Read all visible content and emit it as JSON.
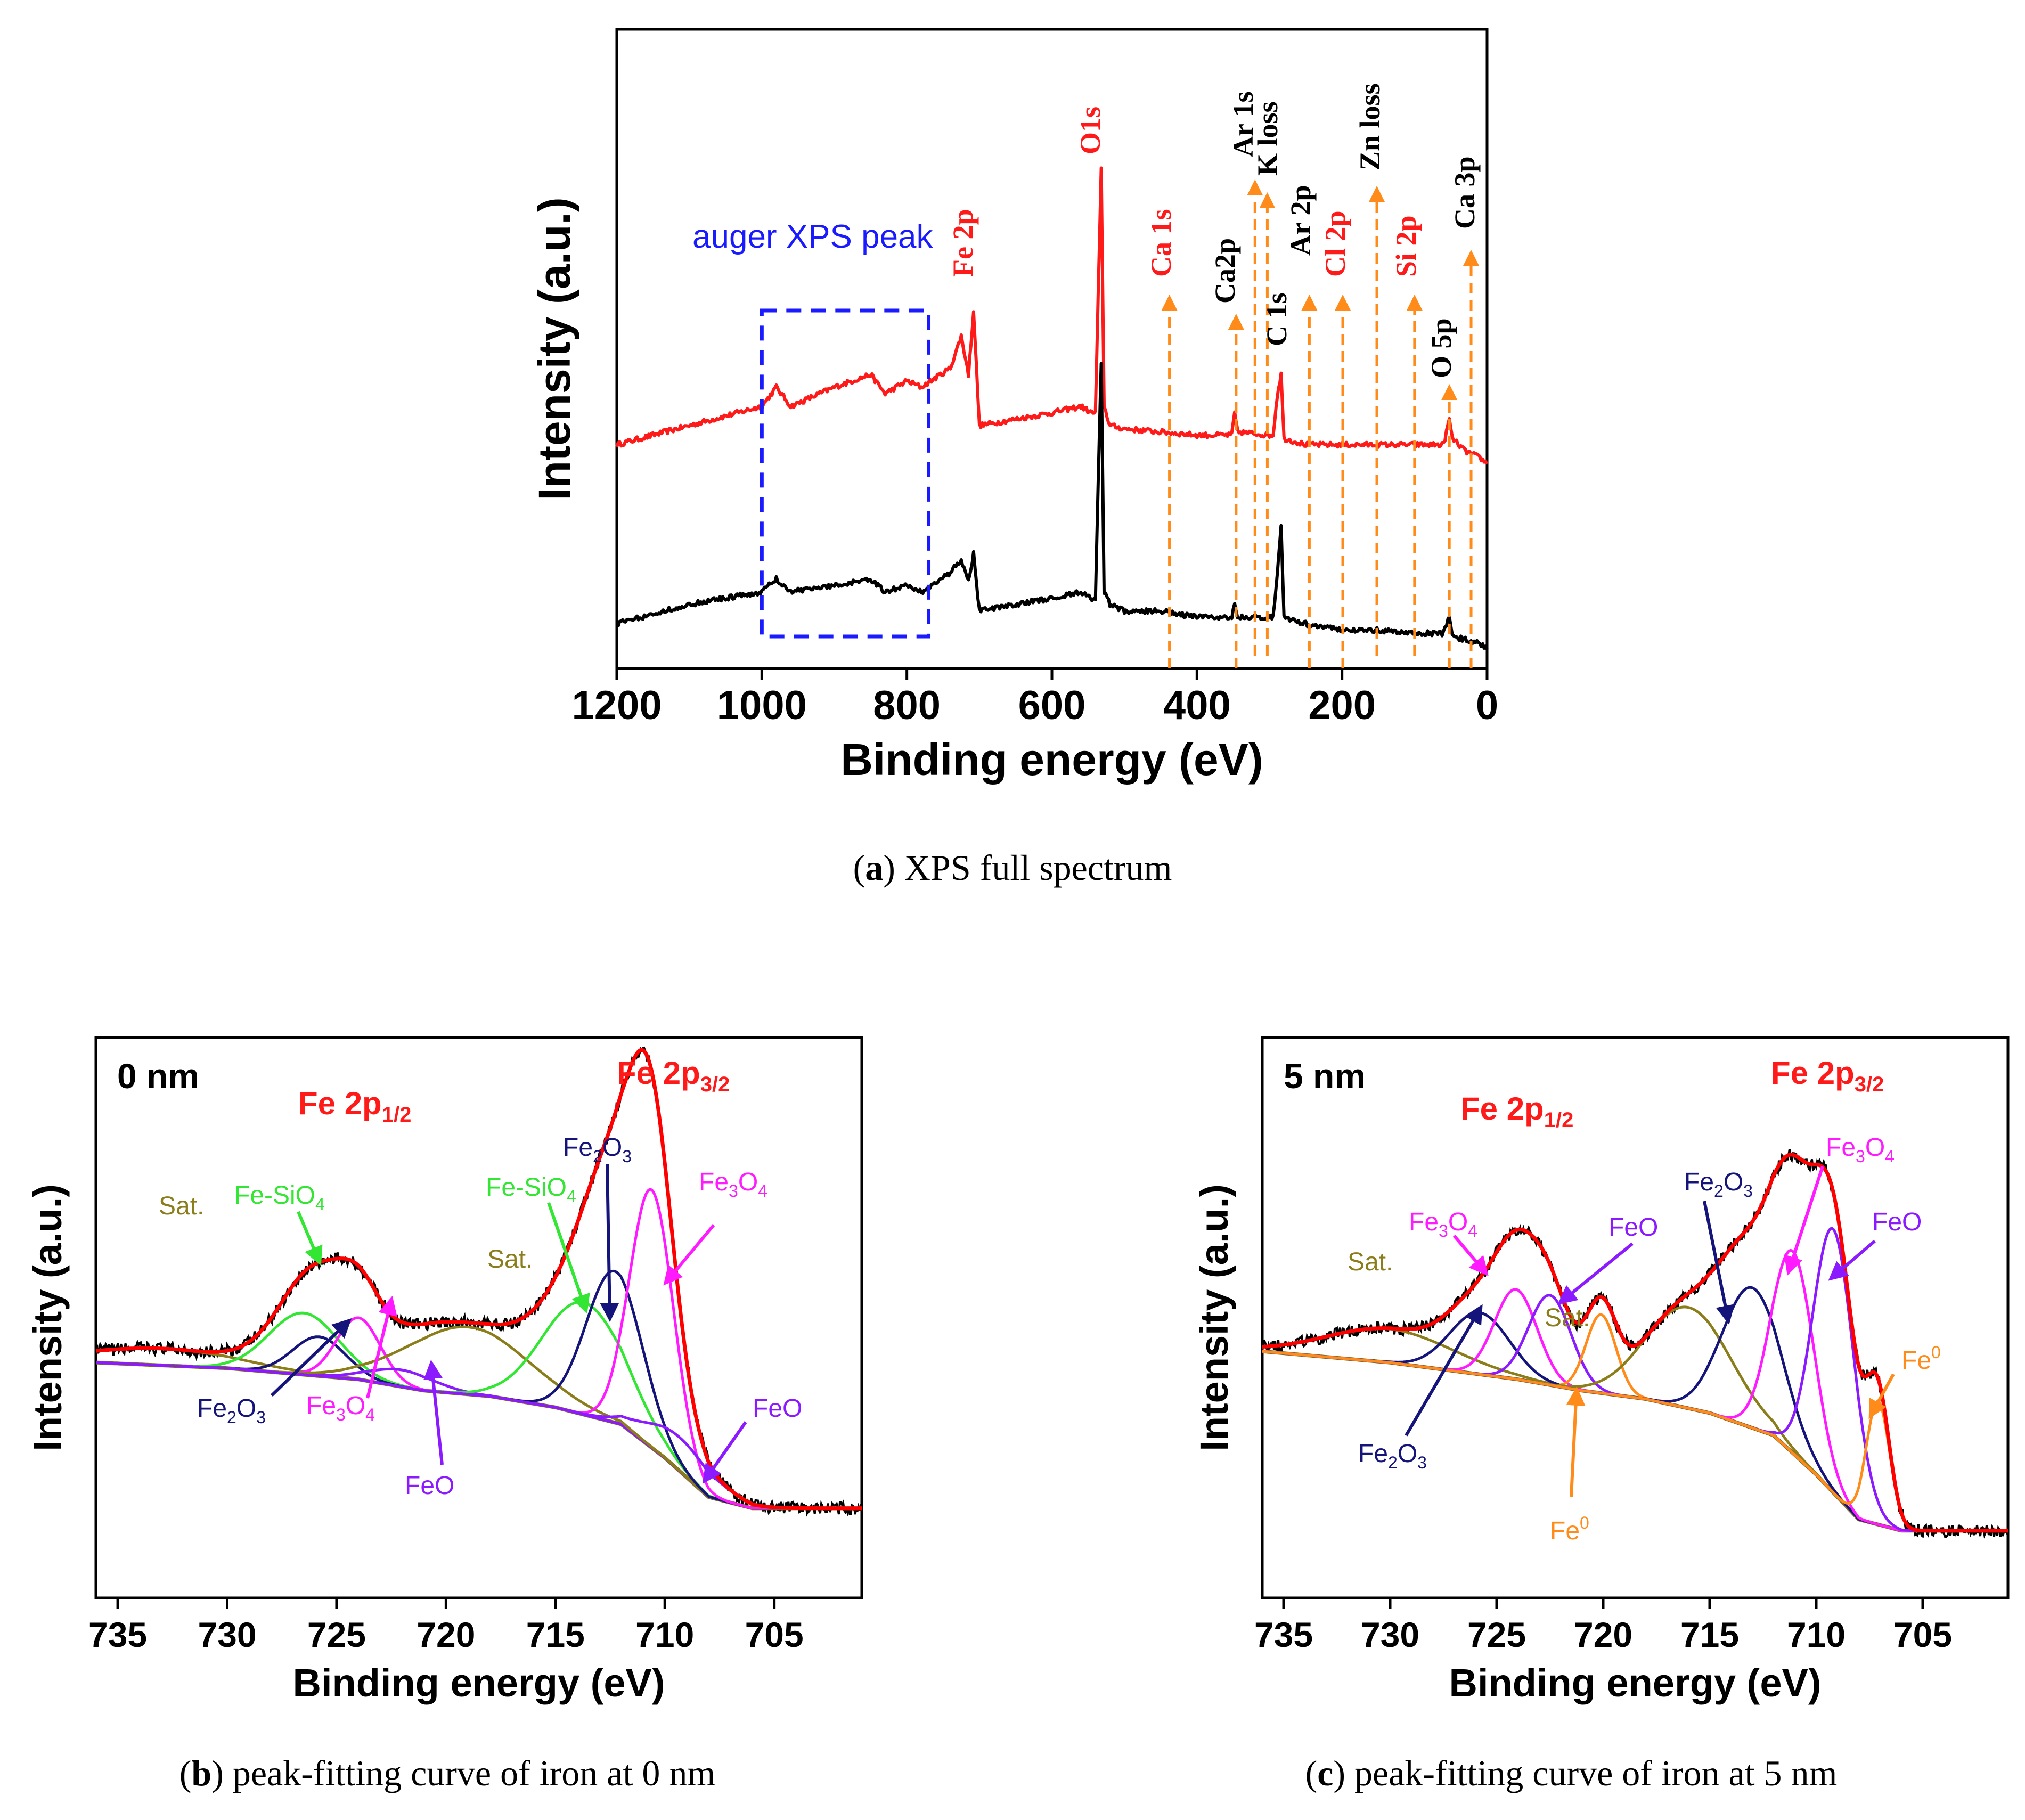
{
  "figure": {
    "captions": {
      "a": {
        "letter": "a",
        "text": ") XPS full spectrum"
      },
      "b": {
        "letter": "b",
        "text": ") peak-fitting curve of iron at 0 nm"
      },
      "c": {
        "letter": "c",
        "text": ") peak-fitting curve of iron at 5 nm"
      }
    }
  },
  "colors": {
    "red": "#ff1a1a",
    "black": "#000000",
    "orange": "#ff8c1a",
    "blue_box": "#1a1aff",
    "olive": "#8b7d1a",
    "green": "#33e633",
    "navy": "#14147a",
    "magenta": "#ff1aff",
    "violet": "#8c1aff",
    "fe0_orange": "#ff8c1a",
    "envelope": "#ff0000"
  },
  "chart_data": [
    {
      "id": "a",
      "type": "line",
      "title": "",
      "xlabel": "Binding energy (eV)",
      "ylabel": "Intensity (a.u.)",
      "xlim": [
        1200,
        0
      ],
      "ylim": [
        0,
        100
      ],
      "x_ticks": [
        1200,
        1000,
        800,
        600,
        400,
        200,
        0
      ],
      "x_tick_labels": [
        "1200",
        "1000",
        "800",
        "600",
        "400",
        "200",
        "0"
      ],
      "series": [
        {
          "name": "red spectrum",
          "color": "red",
          "points": [
            [
              1200,
              35
            ],
            [
              1100,
              38
            ],
            [
              1000,
              41
            ],
            [
              980,
              44
            ],
            [
              960,
              41
            ],
            [
              900,
              44
            ],
            [
              850,
              46
            ],
            [
              830,
              43
            ],
            [
              800,
              45
            ],
            [
              780,
              44
            ],
            [
              740,
              47
            ],
            [
              725,
              52
            ],
            [
              715,
              46
            ],
            [
              708,
              56
            ],
            [
              700,
              38
            ],
            [
              650,
              39
            ],
            [
              600,
              40
            ],
            [
              560,
              41
            ],
            [
              545,
              40
            ],
            [
              540,
              40
            ],
            [
              532,
              78
            ],
            [
              528,
              41
            ],
            [
              520,
              38
            ],
            [
              500,
              37.5
            ],
            [
              450,
              37
            ],
            [
              400,
              36.5
            ],
            [
              352,
              36.5
            ],
            [
              348,
              40
            ],
            [
              344,
              37
            ],
            [
              300,
              36.5
            ],
            [
              295,
              36.5
            ],
            [
              289,
              43
            ],
            [
              284,
              46
            ],
            [
              280,
              36
            ],
            [
              250,
              35
            ],
            [
              200,
              35
            ],
            [
              150,
              35
            ],
            [
              100,
              35
            ],
            [
              60,
              35
            ],
            [
              52,
              39
            ],
            [
              48,
              36
            ],
            [
              30,
              34
            ],
            [
              10,
              33
            ],
            [
              0,
              32
            ]
          ]
        },
        {
          "name": "black spectrum",
          "color": "black",
          "points": [
            [
              1200,
              7
            ],
            [
              1100,
              10
            ],
            [
              1000,
              12
            ],
            [
              980,
              14
            ],
            [
              960,
              12
            ],
            [
              900,
              13
            ],
            [
              850,
              14
            ],
            [
              830,
              12
            ],
            [
              800,
              13
            ],
            [
              780,
              12
            ],
            [
              740,
              15
            ],
            [
              725,
              17
            ],
            [
              715,
              14
            ],
            [
              708,
              18
            ],
            [
              700,
              9
            ],
            [
              650,
              10
            ],
            [
              600,
              11
            ],
            [
              560,
              12
            ],
            [
              545,
              11
            ],
            [
              540,
              11
            ],
            [
              532,
              48
            ],
            [
              528,
              12
            ],
            [
              520,
              10
            ],
            [
              500,
              9
            ],
            [
              450,
              9
            ],
            [
              400,
              8
            ],
            [
              352,
              8
            ],
            [
              348,
              10
            ],
            [
              344,
              8
            ],
            [
              300,
              8
            ],
            [
              295,
              8
            ],
            [
              289,
              15
            ],
            [
              284,
              22
            ],
            [
              280,
              8
            ],
            [
              250,
              7
            ],
            [
              200,
              6
            ],
            [
              150,
              6
            ],
            [
              100,
              5.5
            ],
            [
              60,
              5.5
            ],
            [
              52,
              8
            ],
            [
              48,
              5
            ],
            [
              30,
              4.5
            ],
            [
              10,
              4
            ],
            [
              0,
              3
            ]
          ]
        }
      ],
      "annotations": [
        {
          "text": "auger XPS peak",
          "color": "blue_box",
          "box_x": [
            1000,
            770
          ],
          "box_y": [
            5,
            56
          ]
        },
        {
          "text": "Fe 2p",
          "x": 710,
          "color": "red"
        },
        {
          "text": "O1s",
          "x": 532,
          "color": "red"
        },
        {
          "text": "Ca 1s",
          "x": 438,
          "color": "red",
          "arrow_y": [
            0,
            58
          ]
        },
        {
          "text": "Ca2p",
          "x": 346,
          "color": "black",
          "arrow_y": [
            0,
            55
          ]
        },
        {
          "text": "Ar 1s",
          "x": 320,
          "color": "black",
          "arrow_y": [
            2,
            76
          ]
        },
        {
          "text": "K loss",
          "x": 303,
          "color": "black",
          "arrow_y": [
            2,
            74
          ]
        },
        {
          "text": "C 1s",
          "x": 285,
          "color": "black"
        },
        {
          "text": "Ar 2p",
          "x": 245,
          "color": "black",
          "arrow_y": [
            0,
            58
          ]
        },
        {
          "text": "Cl 2p",
          "x": 199,
          "color": "red",
          "arrow_y": [
            0,
            58
          ]
        },
        {
          "text": "Zn loss",
          "x": 152,
          "color": "black",
          "arrow_y": [
            2,
            75
          ]
        },
        {
          "text": "Si 2p",
          "x": 100,
          "color": "red",
          "arrow_y": [
            2,
            58
          ]
        },
        {
          "text": "O 5p",
          "x": 52,
          "color": "black",
          "arrow_y": [
            0,
            44
          ]
        },
        {
          "text": "Ca 3p",
          "x": 22,
          "color": "black",
          "arrow_y": [
            0,
            65
          ]
        }
      ]
    },
    {
      "id": "b",
      "type": "line",
      "xlabel": "Binding energy (eV)",
      "ylabel": "Intensity (a.u.)",
      "xlim": [
        736,
        701
      ],
      "ylim": [
        0,
        100
      ],
      "x_ticks": [
        735,
        730,
        725,
        720,
        715,
        710,
        705
      ],
      "x_tick_labels": [
        "735",
        "730",
        "725",
        "720",
        "715",
        "710",
        "705"
      ],
      "panel_label": "0 nm",
      "headers": [
        {
          "text": "Fe 2p",
          "sub": "1/2"
        },
        {
          "text": "Fe 2p",
          "sub": "3/2"
        }
      ],
      "background": [
        [
          736,
          42
        ],
        [
          733,
          41.5
        ],
        [
          730,
          41
        ],
        [
          727,
          40
        ],
        [
          724,
          39
        ],
        [
          721,
          37
        ],
        [
          718,
          36
        ],
        [
          715,
          34
        ],
        [
          712,
          31
        ],
        [
          710,
          25
        ],
        [
          708,
          18
        ],
        [
          706,
          16
        ],
        [
          703,
          16
        ],
        [
          701,
          16
        ]
      ],
      "components": [
        {
          "name": "Sat.",
          "color": "olive",
          "center": 733,
          "amp": 3,
          "sigma": 3.5
        },
        {
          "name": "Fe-SiO4",
          "color": "green",
          "center": 726.5,
          "amp": 11,
          "sigma": 1.6
        },
        {
          "name": "Fe2O3",
          "color": "navy",
          "center": 725.8,
          "amp": 7,
          "sigma": 1.2
        },
        {
          "name": "Fe3O4",
          "color": "magenta",
          "center": 724,
          "amp": 11,
          "sigma": 1.0
        },
        {
          "name": "FeO",
          "color": "violet",
          "center": 722,
          "amp": 3,
          "sigma": 1.5
        },
        {
          "name": "Sat.",
          "color": "olive",
          "center": 719,
          "amp": 12,
          "sigma": 2.8
        },
        {
          "name": "Fe-SiO4",
          "color": "green",
          "center": 713.7,
          "amp": 20,
          "sigma": 1.9
        },
        {
          "name": "Fe2O3",
          "color": "navy",
          "center": 712.3,
          "amp": 27,
          "sigma": 1.3
        },
        {
          "name": "Fe3O4",
          "color": "magenta",
          "center": 710.6,
          "amp": 46,
          "sigma": 1.0
        },
        {
          "name": "FeO",
          "color": "violet",
          "center": 709.3,
          "amp": 6,
          "sigma": 1.6
        }
      ],
      "labels": [
        {
          "text": "Sat.",
          "color": "olive"
        },
        {
          "text": "Fe-SiO",
          "sub": "4",
          "color": "green"
        },
        {
          "text": "Fe",
          "sub": "2",
          "text2": "O",
          "sub2": "3",
          "color": "navy"
        },
        {
          "text": "Fe",
          "sub": "3",
          "text2": "O",
          "sub2": "4",
          "color": "magenta"
        },
        {
          "text": "FeO",
          "color": "violet"
        },
        {
          "text": "Sat.",
          "color": "olive"
        },
        {
          "text": "Fe-SiO",
          "sub": "4",
          "color": "green"
        },
        {
          "text": "Fe",
          "sub": "2",
          "text2": "O",
          "sub2": "3",
          "color": "navy"
        },
        {
          "text": "Fe",
          "sub": "3",
          "text2": "O",
          "sub2": "4",
          "color": "magenta"
        },
        {
          "text": "FeO",
          "color": "violet"
        }
      ]
    },
    {
      "id": "c",
      "type": "line",
      "xlabel": "Binding energy (eV)",
      "ylabel": "Intensity (a.u.)",
      "xlim": [
        736,
        701
      ],
      "ylim": [
        0,
        100
      ],
      "x_ticks": [
        735,
        730,
        725,
        720,
        715,
        710,
        705
      ],
      "x_tick_labels": [
        "735",
        "730",
        "725",
        "720",
        "715",
        "710",
        "705"
      ],
      "panel_label": "5 nm",
      "headers": [
        {
          "text": "Fe 2p",
          "sub": "1/2"
        },
        {
          "text": "Fe 2p",
          "sub": "3/2"
        }
      ],
      "background": [
        [
          736,
          44
        ],
        [
          733,
          43
        ],
        [
          730,
          42
        ],
        [
          727,
          40.5
        ],
        [
          724,
          39
        ],
        [
          721,
          37
        ],
        [
          718,
          35.5
        ],
        [
          715,
          33
        ],
        [
          712,
          29
        ],
        [
          710,
          22
        ],
        [
          708,
          14
        ],
        [
          706,
          12
        ],
        [
          703,
          12
        ],
        [
          701,
          12
        ]
      ],
      "components": [
        {
          "name": "Sat.",
          "color": "olive",
          "center": 730,
          "amp": 6,
          "sigma": 3.0
        },
        {
          "name": "Fe2O3",
          "color": "navy",
          "center": 725.8,
          "amp": 11,
          "sigma": 1.4
        },
        {
          "name": "Fe3O4",
          "color": "magenta",
          "center": 724.1,
          "amp": 16,
          "sigma": 1.0
        },
        {
          "name": "FeO",
          "color": "violet",
          "center": 722.5,
          "amp": 16,
          "sigma": 1.0
        },
        {
          "name": "Fe0",
          "color": "fe0_orange",
          "center": 720.1,
          "amp": 14,
          "sigma": 0.7
        },
        {
          "name": "Sat.",
          "color": "olive",
          "center": 716,
          "amp": 18,
          "sigma": 2.0
        },
        {
          "name": "Fe2O3",
          "color": "navy",
          "center": 713,
          "amp": 25,
          "sigma": 1.4
        },
        {
          "name": "Fe3O4",
          "color": "magenta",
          "center": 711.1,
          "amp": 36,
          "sigma": 1.0
        },
        {
          "name": "FeO",
          "color": "violet",
          "center": 709.2,
          "amp": 47,
          "sigma": 0.95
        },
        {
          "name": "Fe0",
          "color": "fe0_orange",
          "center": 707.1,
          "amp": 22,
          "sigma": 0.55
        }
      ],
      "labels": [
        {
          "text": "Sat.",
          "color": "olive"
        },
        {
          "text": "Fe",
          "sub": "2",
          "text2": "O",
          "sub2": "3",
          "color": "navy"
        },
        {
          "text": "Fe",
          "sub": "3",
          "text2": "O",
          "sub2": "4",
          "color": "magenta"
        },
        {
          "text": "FeO",
          "color": "violet"
        },
        {
          "text": "Fe",
          "sup": "0",
          "color": "fe0_orange"
        },
        {
          "text": "Sat.",
          "color": "olive"
        },
        {
          "text": "Fe",
          "sub": "2",
          "text2": "O",
          "sub2": "3",
          "color": "navy"
        },
        {
          "text": "Fe",
          "sub": "3",
          "text2": "O",
          "sub2": "4",
          "color": "magenta"
        },
        {
          "text": "FeO",
          "color": "violet"
        },
        {
          "text": "Fe",
          "sup": "0",
          "color": "fe0_orange"
        }
      ]
    }
  ]
}
